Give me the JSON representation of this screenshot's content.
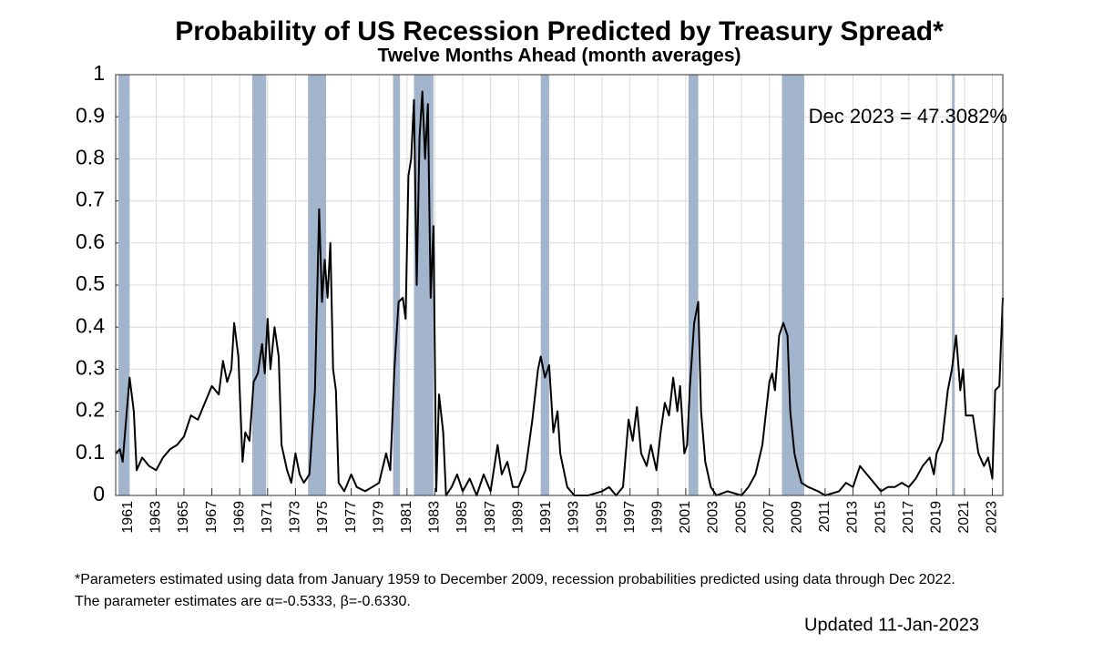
{
  "chart_data": {
    "type": "line",
    "title": "Probability of US Recession Predicted by Treasury Spread*",
    "subtitle": "Twelve Months Ahead (month averages)",
    "annotation": "Dec 2023 = 47.3082%",
    "footnotes": [
      "*Parameters estimated using data from January 1959 to December 2009, recession probabilities predicted using data through Dec 2022.",
      "The parameter estimates are α=-0.5333, β=-0.6330."
    ],
    "updated": "Updated 11-Jan-2023",
    "color": "#000000",
    "recession_color": "#a2b5cc",
    "grid": true,
    "xlim": [
      1960.1,
      2023.75
    ],
    "ylim": [
      0,
      1
    ],
    "xticks": [
      1961,
      1963,
      1965,
      1967,
      1969,
      1971,
      1973,
      1975,
      1977,
      1979,
      1981,
      1983,
      1985,
      1987,
      1989,
      1991,
      1993,
      1995,
      1997,
      1999,
      2001,
      2003,
      2005,
      2007,
      2009,
      2011,
      2013,
      2015,
      2017,
      2019,
      2021,
      2023
    ],
    "yticks": [
      0,
      0.1,
      0.2,
      0.3,
      0.4,
      0.5,
      0.6,
      0.7,
      0.8,
      0.9,
      1
    ],
    "recessions": [
      [
        1960.3,
        1961.1
      ],
      [
        1969.9,
        1970.9
      ],
      [
        1973.9,
        1975.2
      ],
      [
        1980.0,
        1980.5
      ],
      [
        1981.5,
        1982.9
      ],
      [
        1990.6,
        1991.2
      ],
      [
        2001.2,
        2001.9
      ],
      [
        2007.9,
        2009.5
      ],
      [
        2020.1,
        2020.3
      ]
    ],
    "x": [
      1960.1,
      1960.4,
      1960.6,
      1960.9,
      1961.1,
      1961.4,
      1961.6,
      1962.0,
      1962.5,
      1963.0,
      1963.5,
      1964.0,
      1964.5,
      1965.0,
      1965.5,
      1966.0,
      1966.5,
      1967.0,
      1967.5,
      1967.8,
      1968.1,
      1968.4,
      1968.6,
      1968.9,
      1969.2,
      1969.4,
      1969.7,
      1970.0,
      1970.3,
      1970.6,
      1970.8,
      1971.0,
      1971.2,
      1971.5,
      1971.8,
      1972.0,
      1972.4,
      1972.7,
      1973.0,
      1973.3,
      1973.6,
      1974.0,
      1974.4,
      1974.7,
      1974.9,
      1975.1,
      1975.3,
      1975.5,
      1975.7,
      1975.9,
      1976.1,
      1976.5,
      1977.0,
      1977.4,
      1978.0,
      1978.5,
      1979.0,
      1979.5,
      1979.8,
      1980.1,
      1980.4,
      1980.7,
      1980.9,
      1981.1,
      1981.3,
      1981.5,
      1981.7,
      1981.9,
      1982.1,
      1982.3,
      1982.5,
      1982.7,
      1982.9,
      1983.1,
      1983.3,
      1983.6,
      1983.8,
      1984.2,
      1984.6,
      1985.0,
      1985.5,
      1986.0,
      1986.5,
      1987.0,
      1987.5,
      1987.8,
      1988.2,
      1988.6,
      1989.0,
      1989.5,
      1990.0,
      1990.4,
      1990.6,
      1990.9,
      1991.2,
      1991.5,
      1991.8,
      1992.0,
      1992.5,
      1993.0,
      1994.0,
      1995.0,
      1995.5,
      1996.0,
      1996.5,
      1996.9,
      1997.2,
      1997.5,
      1997.8,
      1998.2,
      1998.5,
      1998.9,
      1999.2,
      1999.5,
      1999.8,
      2000.1,
      2000.4,
      2000.6,
      2000.9,
      2001.1,
      2001.3,
      2001.6,
      2001.9,
      2002.1,
      2002.4,
      2002.8,
      2003.2,
      2004.0,
      2005.0,
      2005.5,
      2006.0,
      2006.5,
      2007.0,
      2007.2,
      2007.4,
      2007.7,
      2008.0,
      2008.3,
      2008.5,
      2008.8,
      2009.0,
      2009.3,
      2009.8,
      2010.5,
      2011.0,
      2012.0,
      2012.5,
      2013.0,
      2013.5,
      2014.0,
      2014.5,
      2015.0,
      2015.5,
      2016.0,
      2016.5,
      2017.0,
      2017.5,
      2018.0,
      2018.5,
      2018.8,
      2019.0,
      2019.4,
      2019.8,
      2020.1,
      2020.4,
      2020.7,
      2020.9,
      2021.1,
      2021.6,
      2022.0,
      2022.4,
      2022.7,
      2023.0,
      2023.2,
      2023.5,
      2023.75
    ],
    "values": [
      0.1,
      0.11,
      0.08,
      0.2,
      0.28,
      0.2,
      0.06,
      0.09,
      0.07,
      0.06,
      0.09,
      0.11,
      0.12,
      0.14,
      0.19,
      0.18,
      0.22,
      0.26,
      0.24,
      0.32,
      0.27,
      0.3,
      0.41,
      0.33,
      0.08,
      0.15,
      0.13,
      0.27,
      0.29,
      0.36,
      0.29,
      0.42,
      0.3,
      0.4,
      0.33,
      0.12,
      0.06,
      0.03,
      0.1,
      0.05,
      0.03,
      0.05,
      0.25,
      0.68,
      0.46,
      0.56,
      0.47,
      0.6,
      0.3,
      0.25,
      0.03,
      0.01,
      0.05,
      0.02,
      0.01,
      0.02,
      0.03,
      0.1,
      0.06,
      0.3,
      0.46,
      0.47,
      0.42,
      0.76,
      0.8,
      0.94,
      0.5,
      0.85,
      0.96,
      0.8,
      0.93,
      0.47,
      0.64,
      0.01,
      0.24,
      0.15,
      0.0,
      0.02,
      0.05,
      0.01,
      0.04,
      0.0,
      0.05,
      0.01,
      0.12,
      0.05,
      0.08,
      0.02,
      0.02,
      0.06,
      0.18,
      0.3,
      0.33,
      0.28,
      0.31,
      0.15,
      0.2,
      0.1,
      0.02,
      0.0,
      0.0,
      0.01,
      0.02,
      0.0,
      0.02,
      0.18,
      0.13,
      0.21,
      0.1,
      0.07,
      0.12,
      0.06,
      0.15,
      0.22,
      0.19,
      0.28,
      0.2,
      0.26,
      0.1,
      0.12,
      0.26,
      0.41,
      0.46,
      0.2,
      0.08,
      0.02,
      0.0,
      0.01,
      0.0,
      0.02,
      0.05,
      0.12,
      0.27,
      0.29,
      0.25,
      0.38,
      0.41,
      0.38,
      0.2,
      0.1,
      0.07,
      0.03,
      0.02,
      0.01,
      0.0,
      0.01,
      0.03,
      0.02,
      0.07,
      0.05,
      0.03,
      0.01,
      0.02,
      0.02,
      0.03,
      0.02,
      0.04,
      0.07,
      0.09,
      0.05,
      0.1,
      0.13,
      0.25,
      0.3,
      0.38,
      0.25,
      0.3,
      0.19,
      0.19,
      0.1,
      0.07,
      0.09,
      0.04,
      0.25,
      0.26,
      0.47
    ]
  }
}
